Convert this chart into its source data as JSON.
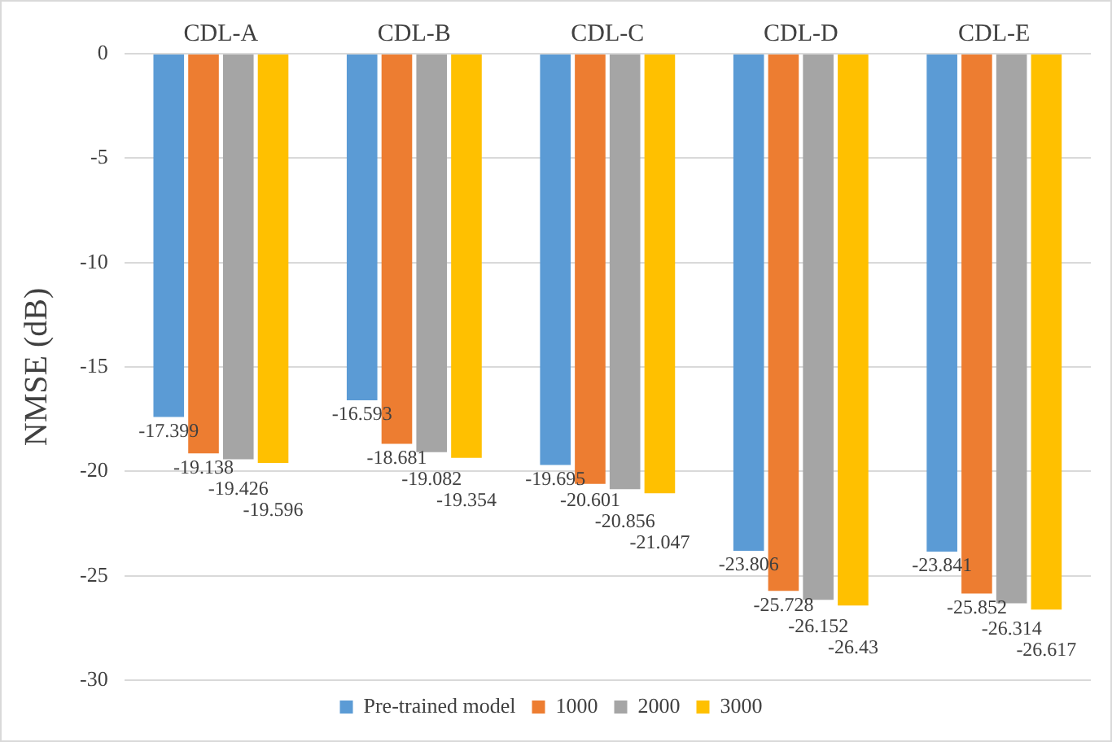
{
  "chart_data": {
    "type": "bar",
    "ylabel": "NMSE (dB)",
    "categories": [
      "CDL-A",
      "CDL-B",
      "CDL-C",
      "CDL-D",
      "CDL-E"
    ],
    "series": [
      {
        "name": "Pre-trained model",
        "color": "#5b9bd5",
        "values": [
          -17.399,
          -16.593,
          -19.695,
          -23.806,
          -23.841
        ]
      },
      {
        "name": "1000",
        "color": "#ed7d31",
        "values": [
          -19.138,
          -18.681,
          -20.601,
          -25.728,
          -25.852
        ]
      },
      {
        "name": "2000",
        "color": "#a5a5a5",
        "values": [
          -19.426,
          -19.082,
          -20.856,
          -26.152,
          -26.314
        ]
      },
      {
        "name": "3000",
        "color": "#ffc000",
        "values": [
          -19.596,
          -19.354,
          -21.047,
          -26.43,
          -26.617
        ]
      }
    ],
    "ylim": [
      -30,
      0
    ],
    "yticks": [
      -30,
      -25,
      -20,
      -15,
      -10,
      -5,
      0
    ],
    "grid": "y",
    "legend": "bottom",
    "data_labels": true
  }
}
